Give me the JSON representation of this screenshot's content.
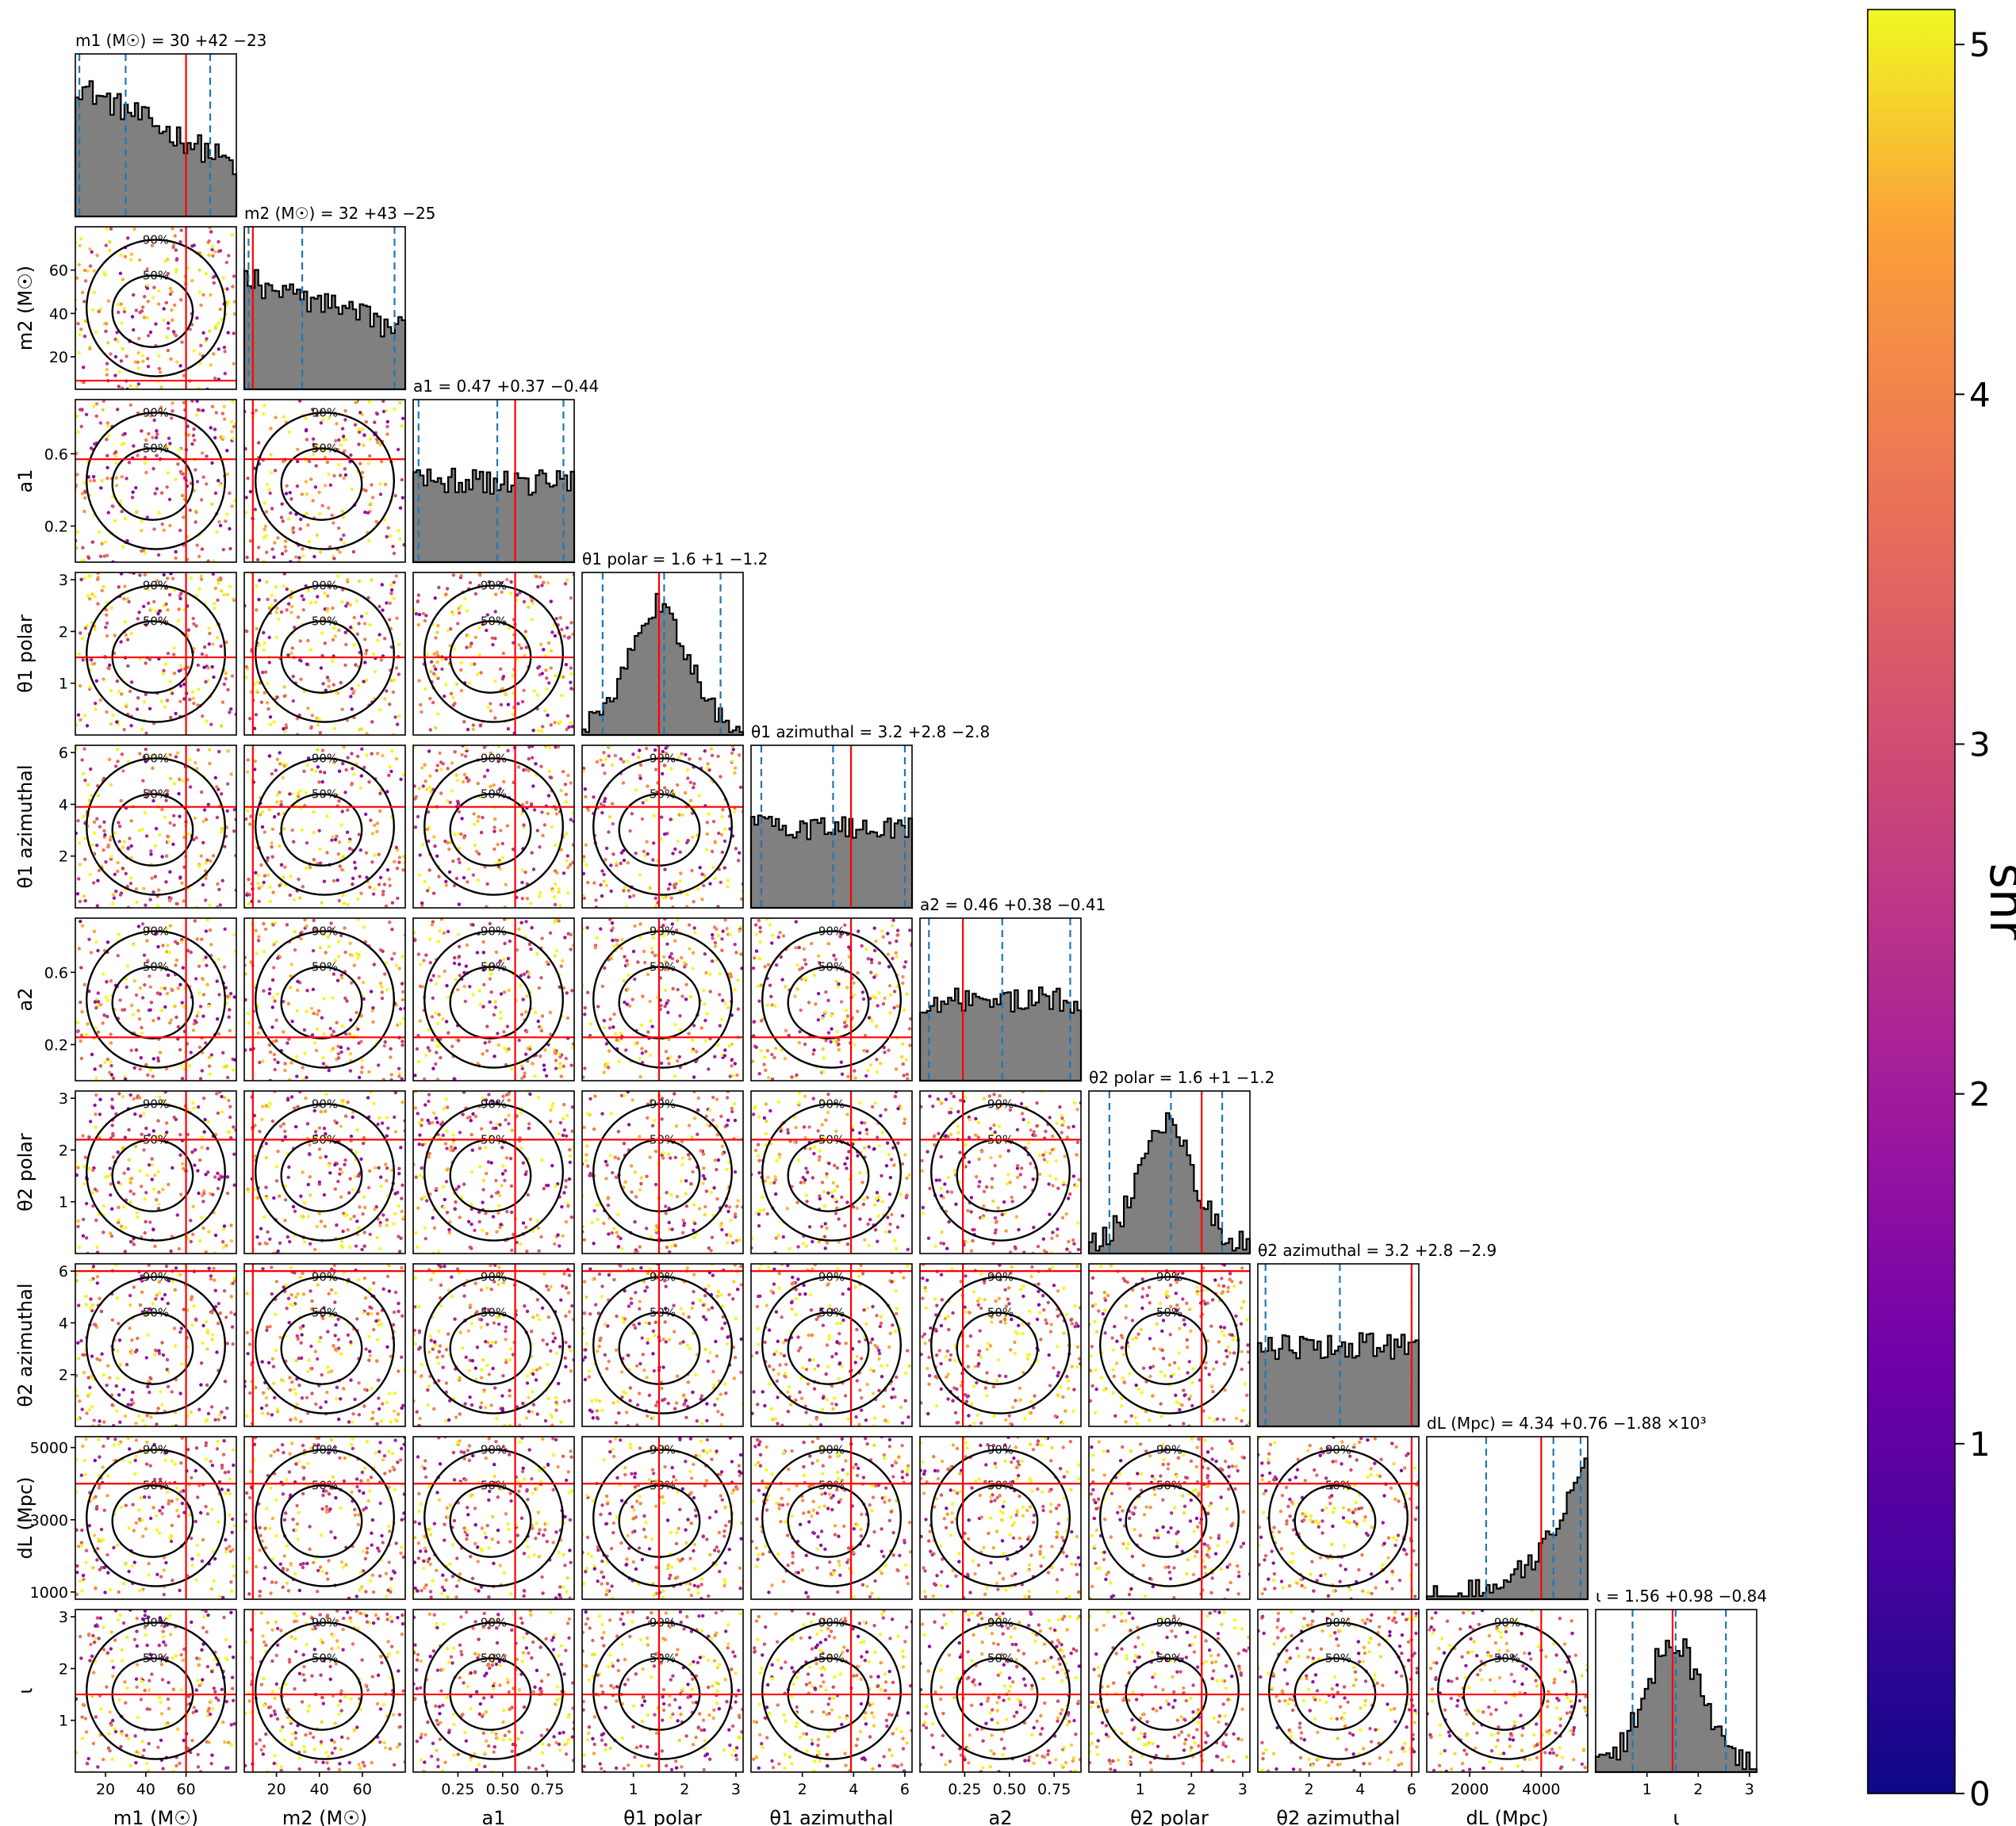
{
  "chart_data": {
    "type": "scatter",
    "title": "",
    "parameters": [
      {
        "key": "m1",
        "label": "m1 (M☉)",
        "range": [
          5,
          85
        ],
        "ticks": [
          20,
          40,
          60
        ],
        "tick_labels": [
          "20",
          "40",
          "60"
        ],
        "title": "m1 (M☉) = 30 +42 −23",
        "median": 30,
        "lower": 7,
        "upper": 72,
        "injection": 60
      },
      {
        "key": "m2",
        "label": "m2 (M☉)",
        "range": [
          5,
          80
        ],
        "ticks": [
          20,
          40,
          60
        ],
        "tick_labels": [
          "20",
          "40",
          "60"
        ],
        "title": "m2 (M☉) = 32 +43 −25",
        "median": 32,
        "lower": 7,
        "upper": 75,
        "injection": 9
      },
      {
        "key": "a1",
        "label": "a1",
        "range": [
          0.0,
          0.9
        ],
        "ticks": [
          0.25,
          0.5,
          0.75
        ],
        "tick_labels": [
          "0.25",
          "0.50",
          "0.75"
        ],
        "left_ticks": [
          0.2,
          0.6
        ],
        "left_tick_labels": [
          "0.2",
          "0.6"
        ],
        "title": "a1 = 0.47 +0.37 −0.44",
        "median": 0.47,
        "lower": 0.03,
        "upper": 0.84,
        "injection": 0.57
      },
      {
        "key": "theta1_polar",
        "label": "θ1 polar",
        "range": [
          0.0,
          3.14
        ],
        "ticks": [
          1,
          2,
          3
        ],
        "tick_labels": [
          "1",
          "2",
          "3"
        ],
        "title": "θ1 polar = 1.6 +1 −1.2",
        "median": 1.6,
        "lower": 0.4,
        "upper": 2.7,
        "injection": 1.5
      },
      {
        "key": "theta1_azimuthal",
        "label": "θ1 azimuthal",
        "range": [
          0.0,
          6.28
        ],
        "ticks": [
          2,
          4,
          6
        ],
        "tick_labels": [
          "2",
          "4",
          "6"
        ],
        "title": "θ1 azimuthal = 3.2 +2.8 −2.8",
        "median": 3.2,
        "lower": 0.4,
        "upper": 6.0,
        "injection": 3.9
      },
      {
        "key": "a2",
        "label": "a2",
        "range": [
          0.0,
          0.9
        ],
        "ticks": [
          0.25,
          0.5,
          0.75
        ],
        "tick_labels": [
          "0.25",
          "0.50",
          "0.75"
        ],
        "left_ticks": [
          0.2,
          0.6
        ],
        "left_tick_labels": [
          "0.2",
          "0.6"
        ],
        "title": "a2 = 0.46 +0.38 −0.41",
        "median": 0.46,
        "lower": 0.05,
        "upper": 0.84,
        "injection": 0.24
      },
      {
        "key": "theta2_polar",
        "label": "θ2 polar",
        "range": [
          0.0,
          3.14
        ],
        "ticks": [
          1,
          2,
          3
        ],
        "tick_labels": [
          "1",
          "2",
          "3"
        ],
        "title": "θ2 polar = 1.6 +1 −1.2",
        "median": 1.6,
        "lower": 0.4,
        "upper": 2.6,
        "injection": 2.2
      },
      {
        "key": "theta2_azimuthal",
        "label": "θ2 azimuthal",
        "range": [
          0.0,
          6.28
        ],
        "ticks": [
          2,
          4,
          6
        ],
        "tick_labels": [
          "2",
          "4",
          "6"
        ],
        "title": "θ2 azimuthal = 3.2 +2.8 −2.9",
        "median": 3.2,
        "lower": 0.3,
        "upper": 6.0,
        "injection": 6.0
      },
      {
        "key": "dL",
        "label": "dL (Mpc)",
        "range": [
          800,
          5300
        ],
        "ticks": [
          2000,
          4000
        ],
        "tick_labels": [
          "2000",
          "4000"
        ],
        "left_ticks": [
          1000,
          3000,
          5000
        ],
        "left_tick_labels": [
          "1000",
          "3000",
          "5000"
        ],
        "title": "dL (Mpc) = 4.34 +0.76 −1.88 ×10³",
        "median": 4340,
        "lower": 2460,
        "upper": 5100,
        "injection": 4000
      },
      {
        "key": "iota",
        "label": "ι",
        "range": [
          0.0,
          3.14
        ],
        "ticks": [
          1,
          2,
          3
        ],
        "tick_labels": [
          "1",
          "2",
          "3"
        ],
        "title": "ι = 1.56 +0.98 −0.84",
        "median": 1.56,
        "lower": 0.72,
        "upper": 2.54,
        "injection": 1.5
      }
    ],
    "contour_levels": [
      "50%",
      "90%"
    ],
    "colorbar": {
      "label": "snr",
      "range": [
        0,
        5.1
      ],
      "ticks": [
        0,
        1,
        2,
        3,
        4,
        5
      ],
      "tick_labels": [
        "0",
        "1",
        "2",
        "3",
        "4",
        "5"
      ],
      "colormap": "plasma"
    },
    "injection_color": "#ff0000",
    "quantile_color": "#1f77b4",
    "hist_fill": "#808080"
  }
}
